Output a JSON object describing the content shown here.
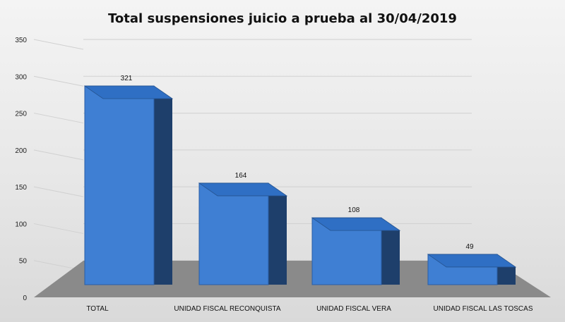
{
  "chart_data": {
    "type": "bar",
    "title": "Total suspensiones juicio a prueba al 30/04/2019",
    "categories": [
      "TOTAL",
      "UNIDAD FISCAL RECONQUISTA",
      "UNIDAD FISCAL VERA",
      "UNIDAD FISCAL LAS TOSCAS"
    ],
    "values": [
      321,
      164,
      108,
      49
    ],
    "data_labels": [
      "321",
      "164",
      "108",
      "49"
    ],
    "yticks": [
      "0",
      "50",
      "100",
      "150",
      "200",
      "250",
      "300",
      "350"
    ],
    "ylim": [
      0,
      350
    ],
    "style": "3d-column",
    "grid": true,
    "legend": "none",
    "colors": {
      "bar_front": "#3f7fd3",
      "bar_top": "#2f6fc4",
      "bar_side": "#1e3f6b",
      "floor": "#8a8a8a",
      "grid": "#d0d0d0"
    }
  }
}
